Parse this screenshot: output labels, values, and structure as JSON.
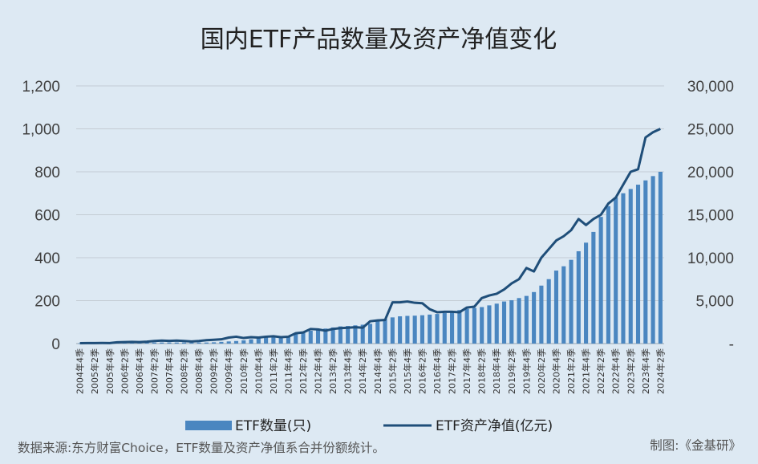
{
  "chart_data": {
    "type": "bar+line",
    "title": "国内ETF产品数量及资产净值变化",
    "footnote": "数据来源:东方财富Choice，ETF数量及资产净值系合并份额统计。",
    "credit": "制图:《金基研》",
    "legend": {
      "placement": "bottom"
    },
    "grid": true,
    "y_left": {
      "ylim": [
        0,
        1200
      ],
      "ticks": [
        "0",
        "200",
        "400",
        "600",
        "800",
        "1,000",
        "1,200"
      ]
    },
    "y_right": {
      "ylim": [
        0,
        30000
      ],
      "ticks": [
        "-",
        "5,000",
        "10,000",
        "15,000",
        "20,000",
        "25,000",
        "30,000"
      ]
    },
    "categories": [
      "2004年4季",
      "2005年1季",
      "2005年2季",
      "2005年3季",
      "2005年4季",
      "2006年1季",
      "2006年2季",
      "2006年3季",
      "2006年4季",
      "2007年1季",
      "2007年2季",
      "2007年3季",
      "2007年4季",
      "2008年1季",
      "2008年2季",
      "2008年3季",
      "2008年4季",
      "2009年1季",
      "2009年2季",
      "2009年3季",
      "2009年4季",
      "2010年1季",
      "2010年2季",
      "2010年3季",
      "2010年4季",
      "2011年1季",
      "2011年2季",
      "2011年3季",
      "2011年4季",
      "2012年1季",
      "2012年2季",
      "2012年3季",
      "2012年4季",
      "2013年1季",
      "2013年2季",
      "2013年3季",
      "2013年4季",
      "2014年1季",
      "2014年2季",
      "2014年3季",
      "2014年4季",
      "2015年1季",
      "2015年2季",
      "2015年3季",
      "2015年4季",
      "2016年1季",
      "2016年2季",
      "2016年3季",
      "2016年4季",
      "2017年1季",
      "2017年2季",
      "2017年3季",
      "2017年4季",
      "2018年1季",
      "2018年2季",
      "2018年3季",
      "2018年4季",
      "2019年1季",
      "2019年2季",
      "2019年3季",
      "2019年4季",
      "2020年1季",
      "2020年2季",
      "2020年3季",
      "2020年4季",
      "2021年1季",
      "2021年2季",
      "2021年3季",
      "2021年4季",
      "2022年1季",
      "2022年2季",
      "2022年3季",
      "2022年4季",
      "2023年1季",
      "2023年2季",
      "2023年3季",
      "2023年4季",
      "2024年1季",
      "2024年2季"
    ],
    "series": [
      {
        "name": "ETF数量(只)",
        "type": "bar",
        "axis": "left",
        "color": "#4a86c0",
        "values": [
          1,
          1,
          1,
          1,
          2,
          3,
          4,
          5,
          5,
          5,
          5,
          5,
          5,
          5,
          5,
          5,
          5,
          5,
          6,
          8,
          10,
          12,
          15,
          20,
          25,
          28,
          30,
          33,
          36,
          45,
          52,
          60,
          65,
          70,
          75,
          80,
          82,
          85,
          88,
          92,
          110,
          115,
          122,
          127,
          129,
          130,
          132,
          135,
          138,
          142,
          150,
          156,
          162,
          166,
          170,
          178,
          186,
          196,
          202,
          212,
          222,
          240,
          270,
          300,
          340,
          360,
          390,
          430,
          470,
          520,
          590,
          640,
          680,
          700,
          720,
          740,
          760,
          780,
          800
        ]
      },
      {
        "name": "ETF资产净值(亿元)",
        "type": "line",
        "axis": "right",
        "color": "#1f4e79",
        "values": [
          50,
          55,
          60,
          65,
          60,
          150,
          180,
          200,
          180,
          220,
          300,
          350,
          320,
          350,
          300,
          250,
          300,
          400,
          450,
          500,
          700,
          800,
          650,
          750,
          700,
          800,
          850,
          750,
          800,
          1200,
          1300,
          1700,
          1650,
          1500,
          1700,
          1800,
          1850,
          1900,
          1850,
          2600,
          2700,
          2750,
          4800,
          4800,
          4900,
          4750,
          4700,
          4000,
          3650,
          3700,
          3700,
          3650,
          4200,
          4300,
          5300,
          5600,
          5800,
          6300,
          7000,
          7500,
          8800,
          8400,
          10000,
          11000,
          12000,
          12500,
          13200,
          14500,
          13800,
          14500,
          15000,
          16300,
          17000,
          18500,
          20000,
          20300,
          24000,
          24600,
          25000
        ]
      }
    ]
  }
}
